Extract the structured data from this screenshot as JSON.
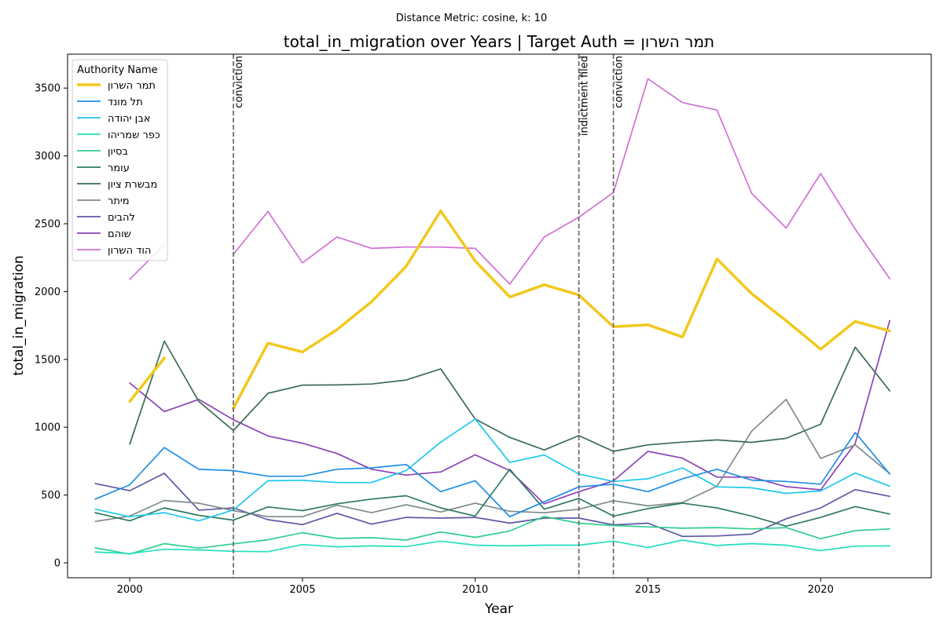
{
  "chart_data": {
    "type": "line",
    "suptitle": "Distance Metric: cosine, k: 10",
    "title": "total_in_migration over Years | Target Auth = תמר השרון",
    "xlabel": "Year",
    "ylabel": "total_in_migration",
    "xlim": [
      1998.2,
      2023.2
    ],
    "ylim": [
      -110,
      3750
    ],
    "xticks": [
      2000,
      2005,
      2010,
      2015,
      2020
    ],
    "yticks": [
      0,
      500,
      1000,
      1500,
      2000,
      2500,
      3000,
      3500
    ],
    "grid": false,
    "legend": {
      "title": "Authority Name",
      "position": "upper-left"
    },
    "annotations": [
      {
        "x": 2003,
        "label": "conviction"
      },
      {
        "x": 2013,
        "label": "indictment filed"
      },
      {
        "x": 2014,
        "label": "conviction"
      }
    ],
    "series": [
      {
        "name": "תמר השרון",
        "color": "#f2c81e",
        "width": 3.5,
        "points": [
          [
            2000,
            1190
          ],
          [
            2001,
            1510
          ],
          [
            2003,
            1140
          ],
          [
            2004,
            1620
          ],
          [
            2005,
            1555
          ],
          [
            2006,
            1720
          ],
          [
            2007,
            1925
          ],
          [
            2008,
            2185
          ],
          [
            2009,
            2595
          ],
          [
            2010,
            2225
          ],
          [
            2011,
            1960
          ],
          [
            2012,
            2050
          ],
          [
            2013,
            1975
          ],
          [
            2014,
            1740
          ],
          [
            2015,
            1755
          ],
          [
            2016,
            1665
          ],
          [
            2017,
            2240
          ],
          [
            2018,
            1985
          ],
          [
            2019,
            1785
          ],
          [
            2020,
            1575
          ],
          [
            2021,
            1780
          ],
          [
            2022,
            1710
          ]
        ]
      },
      {
        "name": "תל מונד",
        "color": "#1f8fe6",
        "width": 1.7,
        "points": [
          [
            1999,
            470
          ],
          [
            2000,
            575
          ],
          [
            2001,
            850
          ],
          [
            2002,
            690
          ],
          [
            2003,
            680
          ],
          [
            2004,
            638
          ],
          [
            2005,
            638
          ],
          [
            2006,
            690
          ],
          [
            2007,
            700
          ],
          [
            2008,
            725
          ],
          [
            2009,
            525
          ],
          [
            2010,
            605
          ],
          [
            2011,
            340
          ],
          [
            2012,
            450
          ],
          [
            2013,
            560
          ],
          [
            2014,
            580
          ],
          [
            2015,
            525
          ],
          [
            2016,
            620
          ],
          [
            2017,
            690
          ],
          [
            2018,
            610
          ],
          [
            2019,
            600
          ],
          [
            2020,
            580
          ],
          [
            2021,
            960
          ],
          [
            2022,
            655
          ]
        ]
      },
      {
        "name": "אבן יהודה",
        "color": "#1ec8ec",
        "width": 1.7,
        "points": [
          [
            1999,
            395
          ],
          [
            2000,
            340
          ],
          [
            2001,
            370
          ],
          [
            2002,
            310
          ],
          [
            2003,
            390
          ],
          [
            2004,
            605
          ],
          [
            2005,
            608
          ],
          [
            2006,
            592
          ],
          [
            2007,
            592
          ],
          [
            2008,
            680
          ],
          [
            2009,
            890
          ],
          [
            2010,
            1060
          ],
          [
            2011,
            740
          ],
          [
            2012,
            795
          ],
          [
            2013,
            655
          ],
          [
            2014,
            600
          ],
          [
            2015,
            620
          ],
          [
            2016,
            700
          ],
          [
            2017,
            560
          ],
          [
            2018,
            553
          ],
          [
            2019,
            512
          ],
          [
            2020,
            530
          ],
          [
            2021,
            662
          ],
          [
            2022,
            565
          ]
        ]
      },
      {
        "name": "כפר שמריהו",
        "color": "#22dec0",
        "width": 1.7,
        "points": [
          [
            1999,
            80
          ],
          [
            2000,
            68
          ],
          [
            2001,
            100
          ],
          [
            2002,
            95
          ],
          [
            2003,
            85
          ],
          [
            2004,
            82
          ],
          [
            2005,
            135
          ],
          [
            2006,
            118
          ],
          [
            2007,
            125
          ],
          [
            2008,
            120
          ],
          [
            2009,
            160
          ],
          [
            2010,
            130
          ],
          [
            2011,
            125
          ],
          [
            2012,
            130
          ],
          [
            2013,
            130
          ],
          [
            2014,
            160
          ],
          [
            2015,
            112
          ],
          [
            2016,
            168
          ],
          [
            2017,
            128
          ],
          [
            2018,
            142
          ],
          [
            2019,
            130
          ],
          [
            2020,
            90
          ],
          [
            2021,
            123
          ],
          [
            2022,
            125
          ]
        ]
      },
      {
        "name": "בסיון",
        "color": "#2ecf8e",
        "width": 1.7,
        "points": [
          [
            1999,
            110
          ],
          [
            2000,
            65
          ],
          [
            2001,
            142
          ],
          [
            2002,
            108
          ],
          [
            2003,
            140
          ],
          [
            2004,
            170
          ],
          [
            2005,
            222
          ],
          [
            2006,
            180
          ],
          [
            2007,
            186
          ],
          [
            2008,
            168
          ],
          [
            2009,
            228
          ],
          [
            2010,
            188
          ],
          [
            2011,
            235
          ],
          [
            2012,
            342
          ],
          [
            2013,
            292
          ],
          [
            2014,
            275
          ],
          [
            2015,
            265
          ],
          [
            2016,
            255
          ],
          [
            2017,
            260
          ],
          [
            2018,
            250
          ],
          [
            2019,
            260
          ],
          [
            2020,
            178
          ],
          [
            2021,
            238
          ],
          [
            2022,
            250
          ]
        ]
      },
      {
        "name": "עומר",
        "color": "#2e7a62",
        "width": 1.7,
        "points": [
          [
            1999,
            370
          ],
          [
            2000,
            310
          ],
          [
            2001,
            405
          ],
          [
            2002,
            350
          ],
          [
            2003,
            315
          ],
          [
            2004,
            412
          ],
          [
            2005,
            385
          ],
          [
            2006,
            435
          ],
          [
            2007,
            470
          ],
          [
            2008,
            495
          ],
          [
            2009,
            405
          ],
          [
            2010,
            345
          ],
          [
            2011,
            690
          ],
          [
            2012,
            395
          ],
          [
            2013,
            475
          ],
          [
            2014,
            345
          ],
          [
            2015,
            400
          ],
          [
            2016,
            440
          ],
          [
            2017,
            405
          ],
          [
            2018,
            345
          ],
          [
            2019,
            270
          ],
          [
            2020,
            335
          ],
          [
            2021,
            415
          ],
          [
            2022,
            360
          ]
        ]
      },
      {
        "name": "מבשרת ציון",
        "color": "#3a6b58",
        "width": 1.7,
        "points": [
          [
            2000,
            875
          ],
          [
            2001,
            1635
          ],
          [
            2002,
            1190
          ],
          [
            2003,
            975
          ],
          [
            2004,
            1250
          ],
          [
            2005,
            1310
          ],
          [
            2006,
            1312
          ],
          [
            2007,
            1318
          ],
          [
            2008,
            1348
          ],
          [
            2009,
            1430
          ],
          [
            2010,
            1060
          ],
          [
            2011,
            925
          ],
          [
            2012,
            832
          ],
          [
            2013,
            938
          ],
          [
            2014,
            822
          ],
          [
            2015,
            870
          ],
          [
            2016,
            890
          ],
          [
            2017,
            906
          ],
          [
            2018,
            888
          ],
          [
            2019,
            918
          ],
          [
            2020,
            1022
          ],
          [
            2021,
            1590
          ],
          [
            2022,
            1268
          ]
        ]
      },
      {
        "name": "מיתר",
        "color": "#7f8c8d",
        "width": 1.7,
        "points": [
          [
            1999,
            305
          ],
          [
            2000,
            345
          ],
          [
            2001,
            460
          ],
          [
            2002,
            440
          ],
          [
            2003,
            385
          ],
          [
            2004,
            340
          ],
          [
            2005,
            340
          ],
          [
            2006,
            425
          ],
          [
            2007,
            370
          ],
          [
            2008,
            428
          ],
          [
            2009,
            375
          ],
          [
            2010,
            440
          ],
          [
            2011,
            380
          ],
          [
            2012,
            370
          ],
          [
            2013,
            395
          ],
          [
            2014,
            458
          ],
          [
            2015,
            420
          ],
          [
            2016,
            445
          ],
          [
            2017,
            565
          ],
          [
            2018,
            970
          ],
          [
            2019,
            1205
          ],
          [
            2020,
            770
          ],
          [
            2021,
            870
          ],
          [
            2022,
            658
          ]
        ]
      },
      {
        "name": "להבים",
        "color": "#5e58a5",
        "width": 1.7,
        "points": [
          [
            1999,
            585
          ],
          [
            2000,
            532
          ],
          [
            2001,
            660
          ],
          [
            2002,
            388
          ],
          [
            2003,
            405
          ],
          [
            2004,
            318
          ],
          [
            2005,
            282
          ],
          [
            2006,
            365
          ],
          [
            2007,
            285
          ],
          [
            2008,
            335
          ],
          [
            2009,
            330
          ],
          [
            2010,
            335
          ],
          [
            2011,
            293
          ],
          [
            2012,
            330
          ],
          [
            2013,
            330
          ],
          [
            2014,
            280
          ],
          [
            2015,
            292
          ],
          [
            2016,
            195
          ],
          [
            2017,
            198
          ],
          [
            2018,
            212
          ],
          [
            2019,
            325
          ],
          [
            2020,
            405
          ],
          [
            2021,
            540
          ],
          [
            2022,
            490
          ]
        ]
      },
      {
        "name": "שוהם",
        "color": "#8b43b8",
        "width": 1.7,
        "points": [
          [
            2000,
            1325
          ],
          [
            2001,
            1115
          ],
          [
            2002,
            1205
          ],
          [
            2003,
            1055
          ],
          [
            2004,
            935
          ],
          [
            2005,
            882
          ],
          [
            2006,
            806
          ],
          [
            2007,
            690
          ],
          [
            2008,
            647
          ],
          [
            2009,
            670
          ],
          [
            2010,
            796
          ],
          [
            2011,
            680
          ],
          [
            2012,
            435
          ],
          [
            2013,
            525
          ],
          [
            2014,
            604
          ],
          [
            2015,
            822
          ],
          [
            2016,
            772
          ],
          [
            2017,
            632
          ],
          [
            2018,
            632
          ],
          [
            2019,
            562
          ],
          [
            2020,
            538
          ],
          [
            2021,
            880
          ],
          [
            2022,
            1785
          ]
        ]
      },
      {
        "name": "הוד השרון",
        "color": "#d070d5",
        "width": 1.7,
        "points": [
          [
            2000,
            2090
          ],
          [
            2001,
            2345
          ],
          [
            2003,
            2275
          ],
          [
            2004,
            2590
          ],
          [
            2005,
            2212
          ],
          [
            2006,
            2402
          ],
          [
            2007,
            2318
          ],
          [
            2008,
            2328
          ],
          [
            2009,
            2328
          ],
          [
            2010,
            2318
          ],
          [
            2011,
            2055
          ],
          [
            2012,
            2402
          ],
          [
            2013,
            2548
          ],
          [
            2014,
            2730
          ],
          [
            2015,
            3568
          ],
          [
            2016,
            3393
          ],
          [
            2017,
            3338
          ],
          [
            2018,
            2725
          ],
          [
            2019,
            2468
          ],
          [
            2020,
            2870
          ],
          [
            2021,
            2460
          ],
          [
            2022,
            2095
          ]
        ]
      }
    ]
  }
}
